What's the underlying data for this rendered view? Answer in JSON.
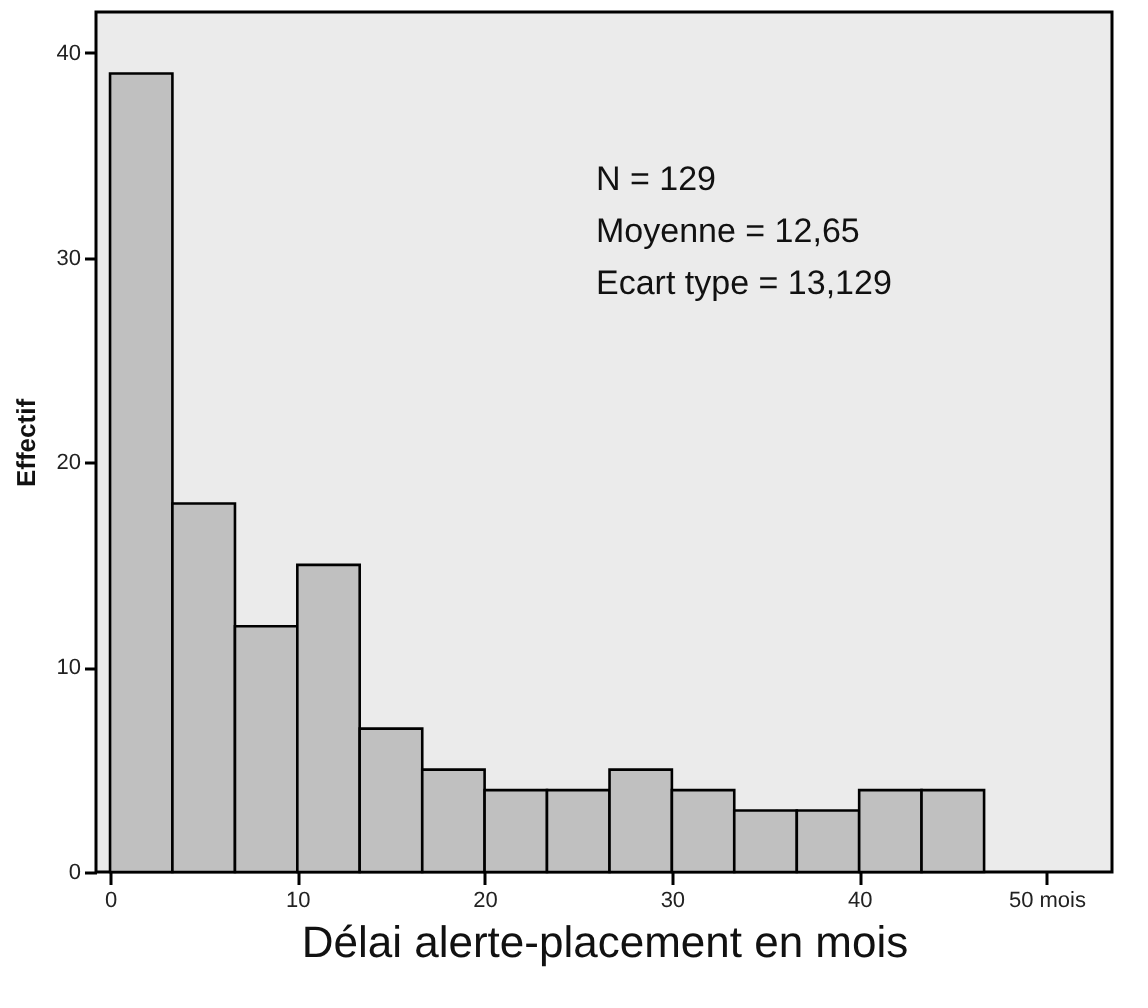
{
  "chart_data": {
    "type": "histogram",
    "xlabel": "Délai alerte-placement en mois",
    "ylabel": "Effectif",
    "bins": [
      0,
      3.33,
      6.67,
      10,
      13.33,
      16.67,
      20,
      23.33,
      26.67,
      30,
      33.33,
      36.67,
      40,
      43.33,
      46.67
    ],
    "values": [
      39,
      18,
      12,
      15,
      7,
      5,
      4,
      4,
      5,
      4,
      3,
      3,
      4,
      4
    ],
    "color": "#c0c0c0",
    "xlim": [
      -0.75,
      53.5
    ],
    "xticks": [
      0,
      10,
      20,
      30,
      40,
      {
        "value": 50,
        "label": "50 mois"
      }
    ],
    "ylim": [
      0,
      42
    ],
    "yticks": [
      0,
      10,
      20,
      30,
      40
    ],
    "grid": false,
    "annotations": [
      "N = 129",
      "Moyenne = 12,65",
      "Ecart type = 13,129"
    ]
  }
}
